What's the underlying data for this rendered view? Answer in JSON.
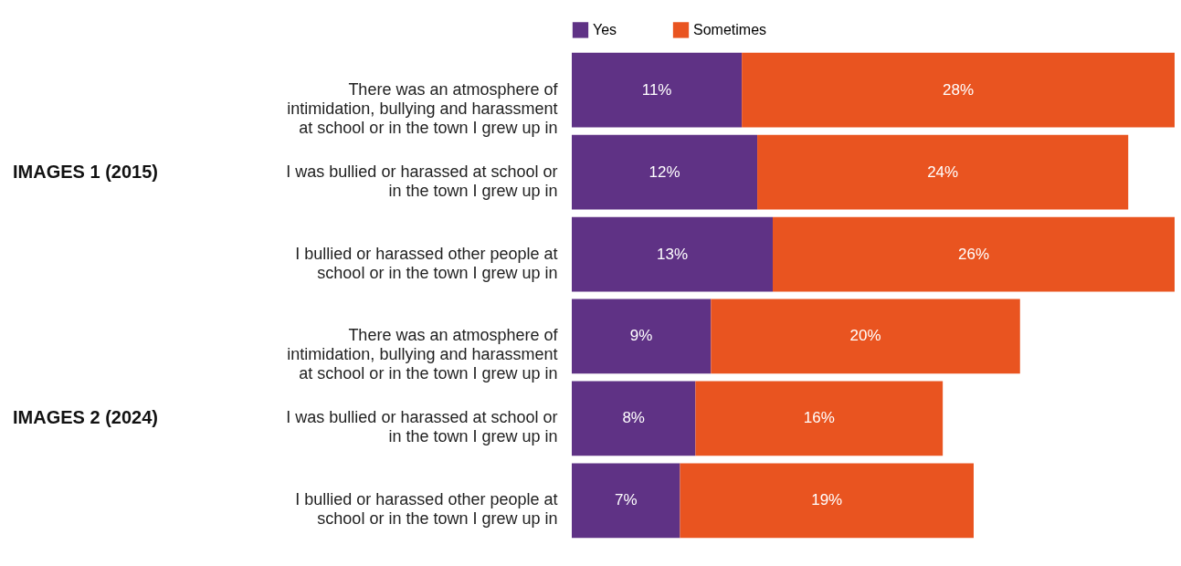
{
  "chart_data": {
    "type": "bar",
    "orientation": "horizontal",
    "stacked": true,
    "legend": "top",
    "categories": [
      "There was an atmosphere of intimidation, bullying and harassment at school or in the town I grew up in",
      "I was bullied or harassed at school or in the town I grew up in",
      "I bullied or harassed other people at school or in the town I grew up in",
      "There was an atmosphere of intimidation, bullying and harassment at school or in the town I grew up in",
      "I was bullied or harassed at school or in the town I grew up in",
      "I bullied or harassed other people at school or in the town I grew up in"
    ],
    "series": [
      {
        "name": "Yes",
        "color": "#5f3285",
        "values": [
          11,
          12,
          13,
          9,
          8,
          7
        ],
        "value_labels": [
          "11%",
          "12%",
          "13%",
          "9%",
          "8%",
          "7%"
        ]
      },
      {
        "name": "Sometimes",
        "color": "#e95420",
        "values": [
          28,
          24,
          26,
          20,
          16,
          19
        ],
        "value_labels": [
          "28%",
          "24%",
          "26%",
          "20%",
          "16%",
          "19%"
        ]
      }
    ],
    "annotations": [
      "IMAGES 1 (2015)",
      "IMAGES 2 (2024)"
    ]
  }
}
